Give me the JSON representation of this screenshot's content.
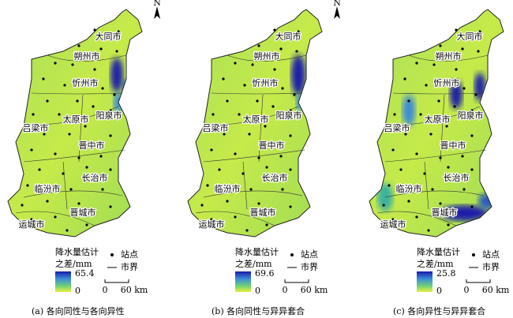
{
  "north_label": "N",
  "cities": [
    "大同市",
    "朔州市",
    "忻州市",
    "太原市",
    "阳泉市",
    "吕梁市",
    "晋中市",
    "长治市",
    "临汾市",
    "晋城市",
    "运城市"
  ],
  "legend": {
    "title_lines": [
      "降水量估计",
      "之差/mm"
    ],
    "station": "站点",
    "boundary": "市界",
    "scale_labels": [
      "0",
      "60 km"
    ]
  },
  "panels": [
    {
      "caption": "(a) 各向同性与各向异性",
      "legend_max": 65.4,
      "legend_min": 0
    },
    {
      "caption": "(b) 各向同性与异异套合",
      "legend_max": 69.6,
      "legend_min": 0
    },
    {
      "caption": "(c) 各向异性与异异套合",
      "legend_max": 25.8,
      "legend_min": 0
    }
  ]
}
